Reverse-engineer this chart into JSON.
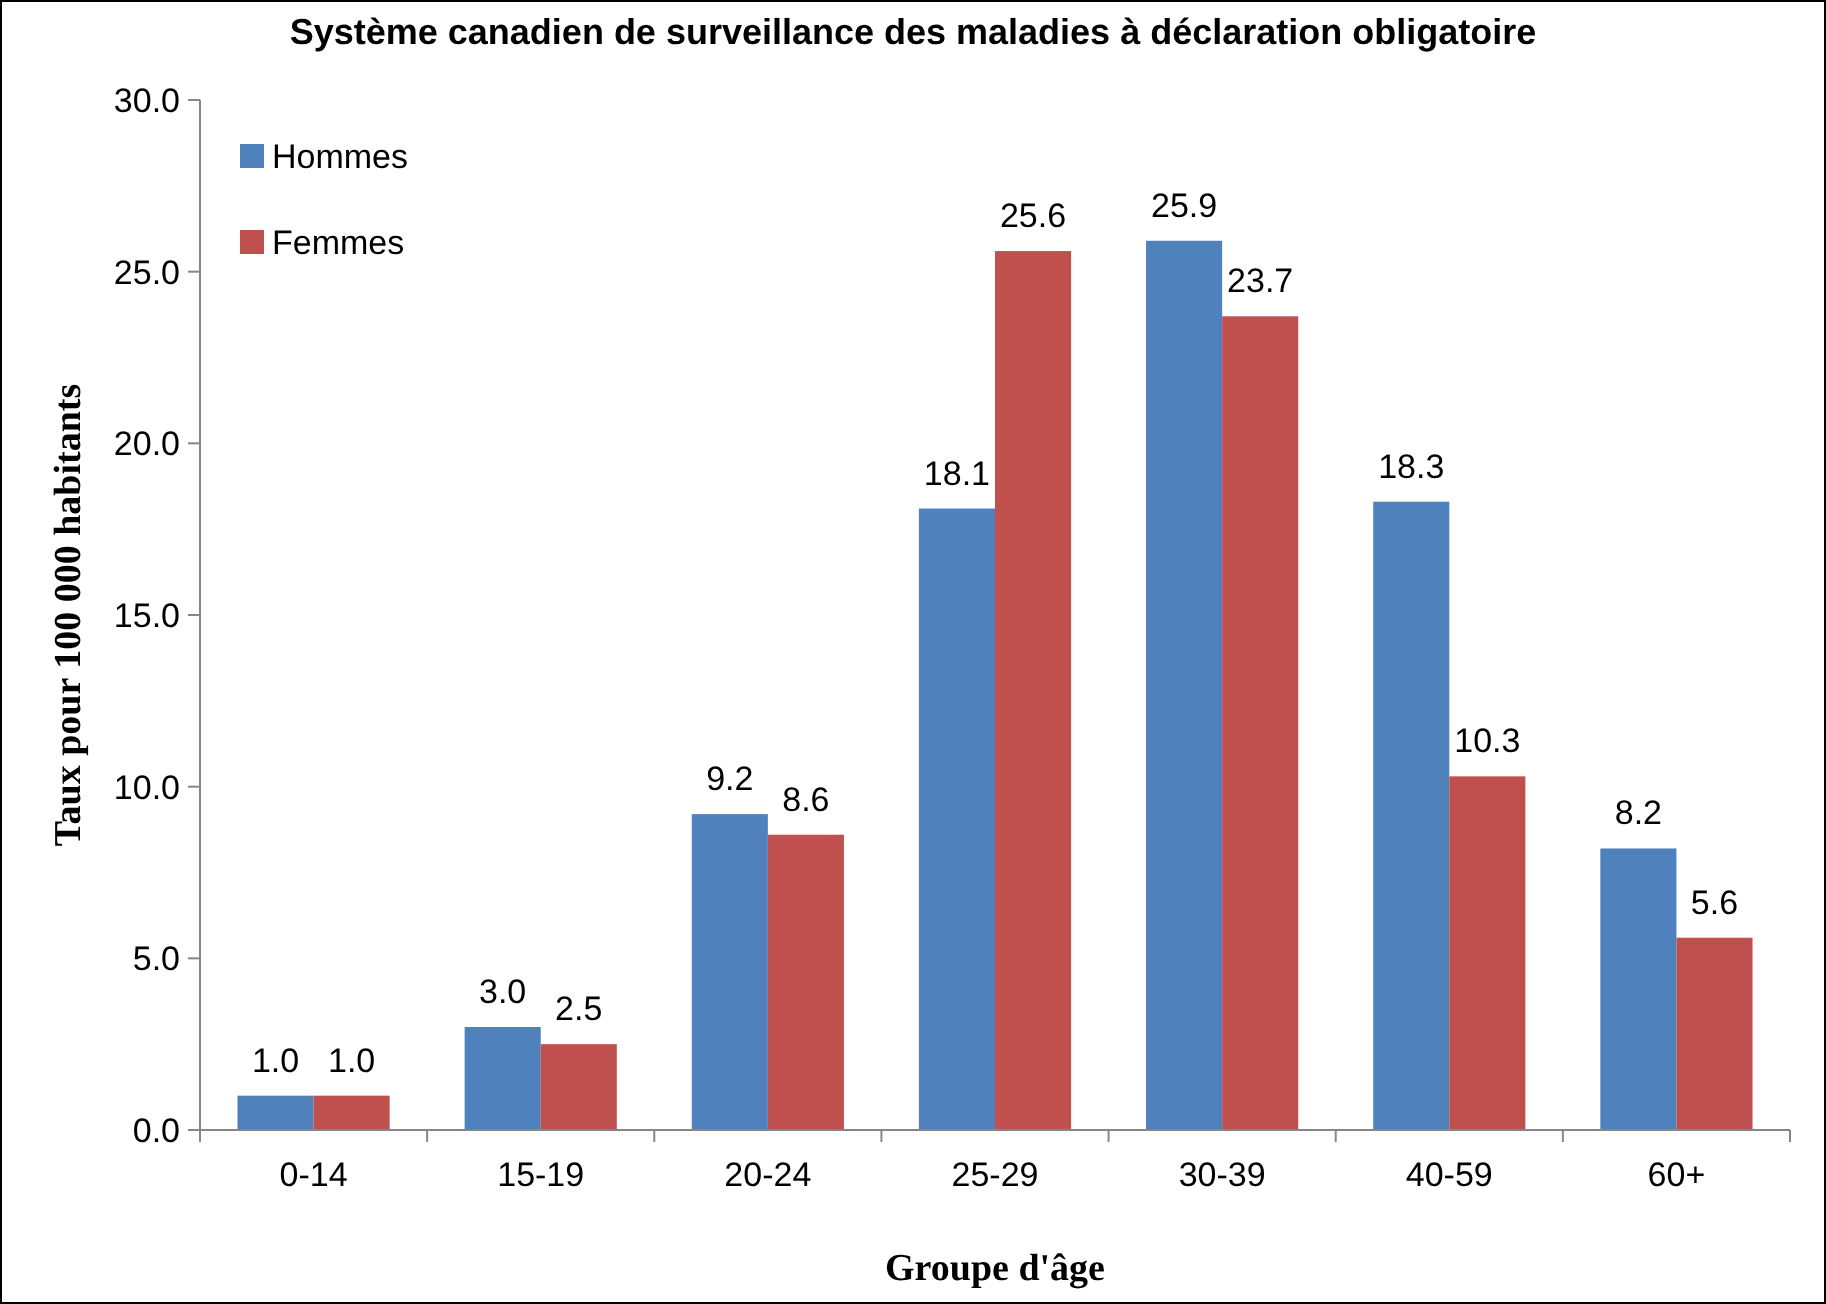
{
  "chart_data": {
    "type": "bar",
    "title": "Système canadien de surveillance des maladies à déclaration obligatoire",
    "xlabel": "Groupe d'âge",
    "ylabel": "Taux pour 100 000 habitants",
    "categories": [
      "0-14",
      "15-19",
      "20-24",
      "25-29",
      "30-39",
      "40-59",
      "60+"
    ],
    "series": [
      {
        "name": "Hommes",
        "color": "#4f81bd",
        "values": [
          1.0,
          3.0,
          9.2,
          18.1,
          25.9,
          18.3,
          8.2
        ],
        "value_labels": [
          "1.0",
          "3.0",
          "9.2",
          "18.1",
          "25.9",
          "18.3",
          "8.2"
        ]
      },
      {
        "name": "Femmes",
        "color": "#c0504d",
        "values": [
          1.0,
          2.5,
          8.6,
          25.6,
          23.7,
          10.3,
          5.6
        ],
        "value_labels": [
          "1.0",
          "2.5",
          "8.6",
          "25.6",
          "23.7",
          "10.3",
          "5.6"
        ]
      }
    ],
    "ylim": [
      0,
      30
    ],
    "yticks": [
      {
        "value": 0,
        "label": "0.0"
      },
      {
        "value": 5,
        "label": "5.0"
      },
      {
        "value": 10,
        "label": "10.0"
      },
      {
        "value": 15,
        "label": "15.0"
      },
      {
        "value": 20,
        "label": "20.0"
      },
      {
        "value": 25,
        "label": "25.0"
      },
      {
        "value": 30,
        "label": "30.0"
      }
    ],
    "legend": "top left",
    "grid": false
  }
}
